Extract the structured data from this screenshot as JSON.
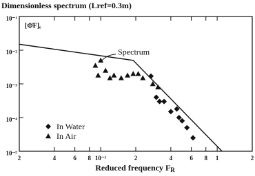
{
  "chart_data": {
    "type": "scatter",
    "title": "Dimensionless spectrum (Lref=0.3m)",
    "y_label": "[Φ̄F]ₑ",
    "x_label": "Reduced frequency F",
    "x_label_subscript": "R",
    "log_x": true,
    "log_y": true,
    "xlim": [
      0.02,
      2
    ],
    "ylim": [
      1e-05,
      0.1
    ],
    "xticks": [
      {
        "value": 0.02,
        "label": "2"
      },
      {
        "value": 0.04,
        "label": "4"
      },
      {
        "value": 0.06,
        "label": "6"
      },
      {
        "value": 0.08,
        "label": "8"
      },
      {
        "value": 0.1,
        "label": "10⁻¹"
      },
      {
        "value": 0.2,
        "label": "2"
      },
      {
        "value": 0.4,
        "label": "4"
      },
      {
        "value": 0.6,
        "label": "6"
      },
      {
        "value": 0.8,
        "label": "8"
      },
      {
        "value": 1,
        "label": "1"
      },
      {
        "value": 2,
        "label": "2"
      }
    ],
    "yticks": [
      {
        "value": 0.1,
        "label": "10⁻¹"
      },
      {
        "value": 0.01,
        "label": "10⁻²"
      },
      {
        "value": 0.001,
        "label": "10⁻³"
      },
      {
        "value": 0.0001,
        "label": "10⁻⁴"
      },
      {
        "value": 1e-05,
        "label": "10⁻⁵"
      }
    ],
    "line": {
      "name": "Spectrum",
      "color": "#111",
      "x": [
        0.02,
        0.19,
        1.1
      ],
      "values": [
        0.015,
        0.005,
        1e-05
      ]
    },
    "legend_position": "lower left",
    "series": [
      {
        "name": "In Water",
        "marker": "diamond",
        "color": "#111",
        "x": [
          0.27,
          0.3,
          0.32,
          0.35,
          0.4,
          0.45,
          0.47,
          0.5,
          0.55,
          0.62
        ],
        "values": [
          0.0017,
          0.0004,
          0.0003,
          0.0003,
          0.00015,
          0.00018,
          0.0001,
          8e-05,
          5e-05,
          2.5e-05
        ]
      },
      {
        "name": "In Air",
        "marker": "triangle",
        "color": "#111",
        "x": [
          0.09,
          0.1,
          0.095,
          0.11,
          0.12,
          0.13,
          0.15,
          0.17,
          0.19,
          0.21,
          0.23,
          0.28,
          0.31
        ],
        "values": [
          0.0035,
          0.005,
          0.0018,
          0.0025,
          0.0015,
          0.0018,
          0.0015,
          0.0018,
          0.002,
          0.002,
          0.0015,
          0.001,
          0.0008
        ]
      }
    ]
  }
}
